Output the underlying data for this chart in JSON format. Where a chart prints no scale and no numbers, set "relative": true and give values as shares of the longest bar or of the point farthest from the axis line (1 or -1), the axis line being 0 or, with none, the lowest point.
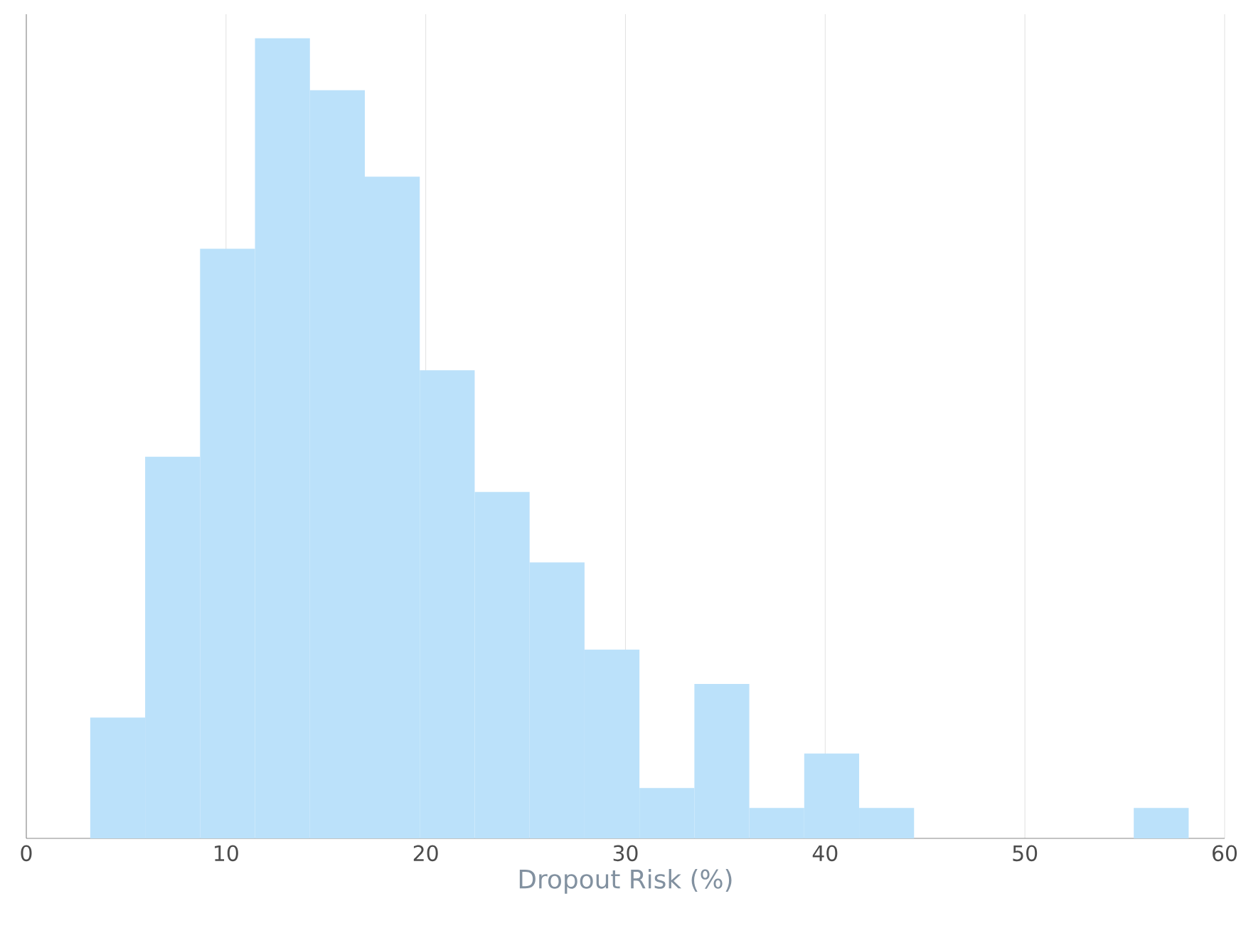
{
  "chart_data": {
    "type": "bar",
    "xlabel": "Dropout Risk (%)",
    "relative": true,
    "color": "#bbe1fa",
    "grid": "x",
    "x": [
      4.575,
      7.325,
      10.075,
      12.825,
      15.575,
      18.325,
      21.075,
      23.825,
      26.575,
      29.325,
      32.075,
      34.825,
      37.575,
      40.325,
      43.075,
      45.825,
      48.575,
      51.325,
      54.075,
      56.825
    ],
    "values": [
      0.151,
      0.477,
      0.737,
      1.0,
      0.935,
      0.827,
      0.585,
      0.433,
      0.345,
      0.236,
      0.063,
      0.193,
      0.038,
      0.106,
      0.038,
      0,
      0,
      0,
      0,
      0.038
    ],
    "xlim": [
      0,
      60
    ],
    "xticks": [
      {
        "value": 0,
        "label": "0"
      },
      {
        "value": 10,
        "label": "10"
      },
      {
        "value": 20,
        "label": "20"
      },
      {
        "value": 30,
        "label": "30"
      },
      {
        "value": 40,
        "label": "40"
      },
      {
        "value": 50,
        "label": "50"
      },
      {
        "value": 60,
        "label": "60"
      }
    ]
  }
}
